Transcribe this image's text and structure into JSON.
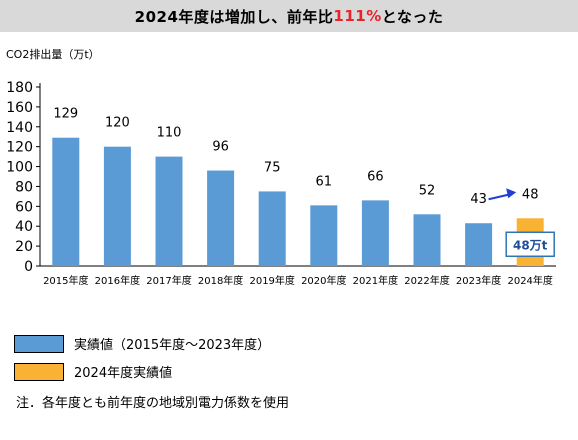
{
  "title": {
    "prefix": "2024年度は増加し、前年比",
    "highlight": "111%",
    "suffix": "となった",
    "highlight_color": "#e8232a"
  },
  "chart_data": {
    "type": "bar",
    "ylabel": "CO2排出量（万t）",
    "xlabel": "",
    "ylim": [
      0,
      180
    ],
    "yticks": [
      0,
      20,
      40,
      60,
      80,
      100,
      120,
      140,
      160,
      180
    ],
    "grid": false,
    "categories": [
      "2015年度",
      "2016年度",
      "2017年度",
      "2018年度",
      "2019年度",
      "2020年度",
      "2021年度",
      "2022年度",
      "2023年度",
      "2024年度"
    ],
    "values": [
      129,
      120,
      110,
      96,
      75,
      61,
      66,
      52,
      43,
      48
    ],
    "data_labels": [
      "129",
      "120",
      "110",
      "96",
      "75",
      "61",
      "66",
      "52",
      "43",
      "48"
    ],
    "colors": {
      "actual": "#5b9bd5",
      "current": "#f9b233",
      "arrow": "#1f3fd6",
      "callout_border": "#2e75b6",
      "callout_text": "#1f4e99"
    },
    "callout": "48万t",
    "legend_position": "bottom"
  },
  "legend": {
    "items": [
      {
        "label": "実績値（2015年度～2023年度）",
        "color": "#5b9bd5"
      },
      {
        "label": "2024年度実績値",
        "color": "#f9b233"
      }
    ]
  },
  "note": "注．各年度とも前年度の地域別電力係数を使用"
}
